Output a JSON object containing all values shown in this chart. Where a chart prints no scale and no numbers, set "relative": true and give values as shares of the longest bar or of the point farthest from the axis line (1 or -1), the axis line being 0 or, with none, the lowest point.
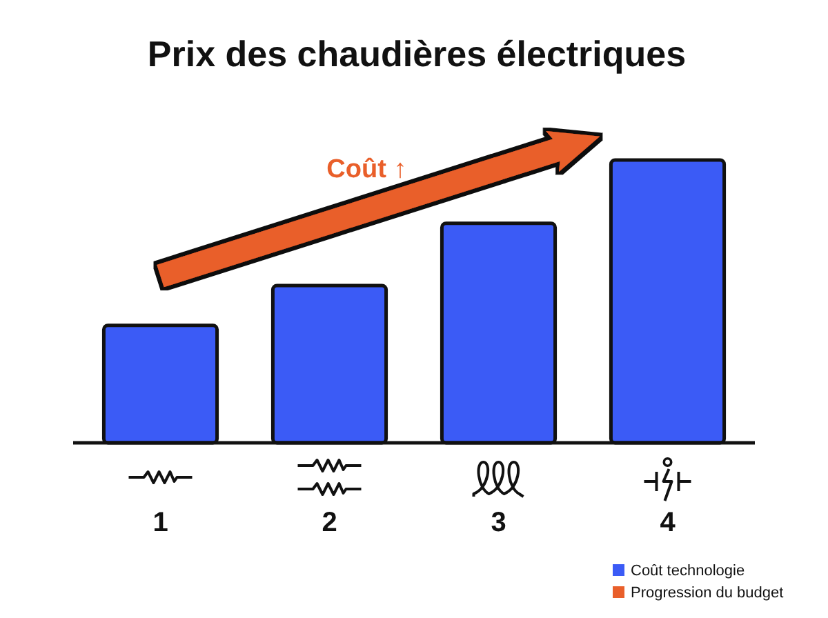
{
  "chart_data": {
    "type": "bar",
    "title": "Prix des chaudières électriques",
    "categories": [
      "1",
      "2",
      "3",
      "4"
    ],
    "relative": true,
    "series": [
      {
        "name": "Coût technologie",
        "color": "#3b5bf6",
        "values": [
          0.415,
          0.556,
          0.776,
          1
        ]
      },
      {
        "name": "Progression du budget",
        "type": "line",
        "color": "#e95f2a",
        "values": [
          0.59,
          0.78,
          0.97,
          null
        ]
      }
    ],
    "annotations": [
      "Coût ↑"
    ],
    "legend": "bottom right"
  }
}
